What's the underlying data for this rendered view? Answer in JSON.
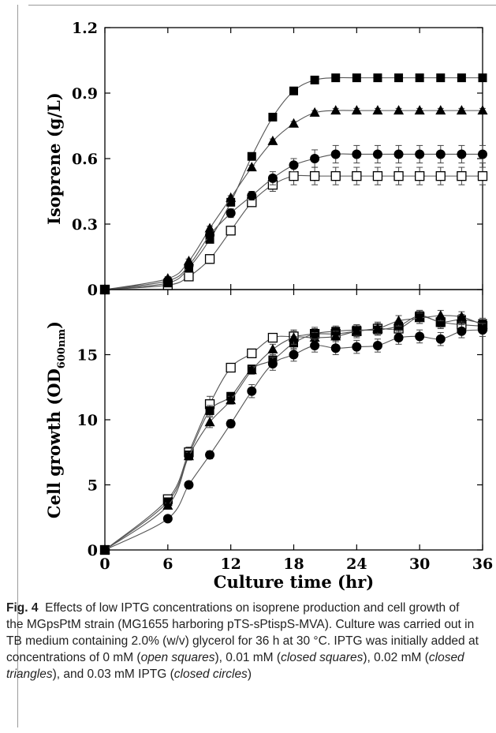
{
  "caption": {
    "fig_label": "Fig. 4",
    "parts": [
      {
        "t": "Effects of low IPTG concentrations on isoprene production and cell growth of the MGpsPtM strain (MG1655 harboring pTS-sPtispS-MVA). Culture was carried out in TB medium containing 2.0% (w/v) glycerol for 36 h at 30 °C. IPTG was initially added at concentrations of 0 mM (",
        "i": false
      },
      {
        "t": "open squares",
        "i": true
      },
      {
        "t": "), 0.01 mM (",
        "i": false
      },
      {
        "t": "closed squares",
        "i": true
      },
      {
        "t": "), 0.02 mM (",
        "i": false
      },
      {
        "t": "closed triangles",
        "i": true
      },
      {
        "t": "), and 0.03 mM IPTG (",
        "i": false
      },
      {
        "t": "closed circles",
        "i": true
      },
      {
        "t": ")",
        "i": false
      }
    ]
  },
  "chart_data": [
    {
      "type": "line",
      "panel": "top",
      "ylabel": "Isoprene (g/L)",
      "ylim": [
        0,
        1.2
      ],
      "yticks": [
        "0",
        "0.3",
        "0.6",
        "0.9",
        "1.2"
      ],
      "xlim": [
        0,
        36
      ],
      "x": [
        0,
        6,
        8,
        10,
        12,
        14,
        16,
        18,
        20,
        22,
        24,
        26,
        28,
        30,
        32,
        34,
        36
      ],
      "series": [
        {
          "marker": "open-square",
          "values": [
            0,
            0.02,
            0.06,
            0.14,
            0.27,
            0.4,
            0.48,
            0.52,
            0.52,
            0.52,
            0.52,
            0.52,
            0.52,
            0.52,
            0.52,
            0.52,
            0.52
          ],
          "err": [
            0,
            0.01,
            0.02,
            0.02,
            0.02,
            0.02,
            0.03,
            0.04,
            0.04,
            0.04,
            0.04,
            0.04,
            0.04,
            0.04,
            0.04,
            0.04,
            0.04
          ]
        },
        {
          "marker": "filled-square",
          "values": [
            0,
            0.03,
            0.1,
            0.23,
            0.4,
            0.61,
            0.79,
            0.91,
            0.96,
            0.97,
            0.97,
            0.97,
            0.97,
            0.97,
            0.97,
            0.97,
            0.97
          ],
          "err": [
            0,
            0.01,
            0.01,
            0.01,
            0.01,
            0.01,
            0.01,
            0.01,
            0.01,
            0.01,
            0.01,
            0.01,
            0.01,
            0.01,
            0.01,
            0.01,
            0.01
          ]
        },
        {
          "marker": "filled-triangle",
          "values": [
            0,
            0.05,
            0.13,
            0.28,
            0.42,
            0.56,
            0.68,
            0.76,
            0.81,
            0.82,
            0.82,
            0.82,
            0.82,
            0.82,
            0.82,
            0.82,
            0.82
          ],
          "err": [
            0,
            0.01,
            0.01,
            0.01,
            0.01,
            0.01,
            0.01,
            0.01,
            0.01,
            0.01,
            0.01,
            0.01,
            0.01,
            0.01,
            0.01,
            0.01,
            0.01
          ]
        },
        {
          "marker": "filled-circle",
          "values": [
            0,
            0.04,
            0.11,
            0.25,
            0.35,
            0.43,
            0.51,
            0.57,
            0.6,
            0.62,
            0.62,
            0.62,
            0.62,
            0.62,
            0.62,
            0.62,
            0.62
          ],
          "err": [
            0,
            0.01,
            0.01,
            0.01,
            0.02,
            0.02,
            0.03,
            0.03,
            0.04,
            0.04,
            0.04,
            0.04,
            0.04,
            0.04,
            0.04,
            0.04,
            0.04
          ]
        }
      ]
    },
    {
      "type": "line",
      "panel": "bottom",
      "ylabel": "Cell growth (OD",
      "ylabel_sub": "600nm",
      "ylabel_close": ")",
      "xlabel": "Culture time (hr)",
      "ylim": [
        0,
        20
      ],
      "yticks": [
        "0",
        "5",
        "10",
        "15"
      ],
      "xlim": [
        0,
        36
      ],
      "xticks": [
        "0",
        "6",
        "12",
        "18",
        "24",
        "30",
        "36"
      ],
      "x": [
        0,
        6,
        8,
        10,
        12,
        14,
        16,
        18,
        20,
        22,
        24,
        26,
        28,
        30,
        32,
        34,
        36
      ],
      "series": [
        {
          "marker": "open-square",
          "values": [
            0,
            3.9,
            7.5,
            11.2,
            14.0,
            15.1,
            16.3,
            16.4,
            16.6,
            16.6,
            16.8,
            17.0,
            17.0,
            17.9,
            17.5,
            17.3,
            17.2
          ],
          "err": [
            0,
            0.3,
            0.4,
            0.6,
            0.3,
            0.2,
            0.3,
            0.5,
            0.5,
            0.5,
            0.5,
            0.5,
            0.5,
            0.5,
            0.5,
            0.5,
            0.5
          ]
        },
        {
          "marker": "filled-square",
          "values": [
            0,
            3.7,
            7.3,
            10.7,
            11.8,
            13.9,
            14.6,
            15.9,
            16.6,
            16.8,
            16.9,
            16.9,
            17.2,
            18.0,
            17.5,
            17.7,
            17.4
          ],
          "err": [
            0,
            0.2,
            0.3,
            0.4,
            0.3,
            0.3,
            0.4,
            0.5,
            0.4,
            0.4,
            0.4,
            0.4,
            0.4,
            0.4,
            0.4,
            0.4,
            0.4
          ]
        },
        {
          "marker": "filled-triangle",
          "values": [
            0,
            3.4,
            7.2,
            9.8,
            11.5,
            13.8,
            15.4,
            16.3,
            16.3,
            16.4,
            16.8,
            17.0,
            17.6,
            17.8,
            18.0,
            17.9,
            17.3
          ],
          "err": [
            0,
            0.2,
            0.3,
            0.4,
            0.3,
            0.3,
            0.4,
            0.5,
            0.4,
            0.4,
            0.4,
            0.4,
            0.4,
            0.4,
            0.4,
            0.4,
            0.4
          ]
        },
        {
          "marker": "filled-circle",
          "values": [
            0,
            2.4,
            5.0,
            7.3,
            9.7,
            12.2,
            14.3,
            15.0,
            15.7,
            15.5,
            15.6,
            15.7,
            16.3,
            16.4,
            16.2,
            16.8,
            16.9
          ],
          "err": [
            0,
            0.2,
            0.2,
            0.3,
            0.3,
            0.5,
            0.5,
            0.5,
            0.5,
            0.5,
            0.5,
            0.5,
            0.5,
            0.5,
            0.5,
            0.5,
            0.5
          ]
        }
      ]
    }
  ]
}
